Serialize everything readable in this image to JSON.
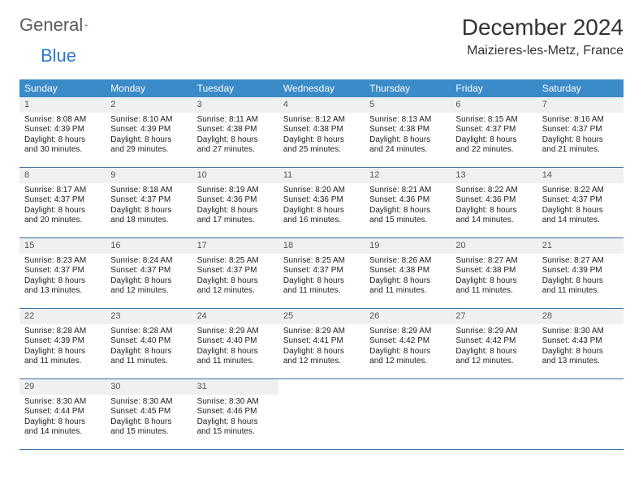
{
  "logo": {
    "general": "General",
    "blue": "Blue"
  },
  "title": "December 2024",
  "location": "Maizieres-les-Metz, France",
  "colors": {
    "header_bg": "#3b8bc9",
    "header_text": "#ffffff",
    "rule": "#3b6fa0",
    "daynum_bg": "#eef0f2",
    "logo_gray": "#5a5a5a",
    "logo_blue": "#2b78c4"
  },
  "weekdays": [
    "Sunday",
    "Monday",
    "Tuesday",
    "Wednesday",
    "Thursday",
    "Friday",
    "Saturday"
  ],
  "days": [
    {
      "n": 1,
      "sunrise": "8:08 AM",
      "sunset": "4:39 PM",
      "day_h": 8,
      "day_m": 30
    },
    {
      "n": 2,
      "sunrise": "8:10 AM",
      "sunset": "4:39 PM",
      "day_h": 8,
      "day_m": 29
    },
    {
      "n": 3,
      "sunrise": "8:11 AM",
      "sunset": "4:38 PM",
      "day_h": 8,
      "day_m": 27
    },
    {
      "n": 4,
      "sunrise": "8:12 AM",
      "sunset": "4:38 PM",
      "day_h": 8,
      "day_m": 25
    },
    {
      "n": 5,
      "sunrise": "8:13 AM",
      "sunset": "4:38 PM",
      "day_h": 8,
      "day_m": 24
    },
    {
      "n": 6,
      "sunrise": "8:15 AM",
      "sunset": "4:37 PM",
      "day_h": 8,
      "day_m": 22
    },
    {
      "n": 7,
      "sunrise": "8:16 AM",
      "sunset": "4:37 PM",
      "day_h": 8,
      "day_m": 21
    },
    {
      "n": 8,
      "sunrise": "8:17 AM",
      "sunset": "4:37 PM",
      "day_h": 8,
      "day_m": 20
    },
    {
      "n": 9,
      "sunrise": "8:18 AM",
      "sunset": "4:37 PM",
      "day_h": 8,
      "day_m": 18
    },
    {
      "n": 10,
      "sunrise": "8:19 AM",
      "sunset": "4:36 PM",
      "day_h": 8,
      "day_m": 17
    },
    {
      "n": 11,
      "sunrise": "8:20 AM",
      "sunset": "4:36 PM",
      "day_h": 8,
      "day_m": 16
    },
    {
      "n": 12,
      "sunrise": "8:21 AM",
      "sunset": "4:36 PM",
      "day_h": 8,
      "day_m": 15
    },
    {
      "n": 13,
      "sunrise": "8:22 AM",
      "sunset": "4:36 PM",
      "day_h": 8,
      "day_m": 14
    },
    {
      "n": 14,
      "sunrise": "8:22 AM",
      "sunset": "4:37 PM",
      "day_h": 8,
      "day_m": 14
    },
    {
      "n": 15,
      "sunrise": "8:23 AM",
      "sunset": "4:37 PM",
      "day_h": 8,
      "day_m": 13
    },
    {
      "n": 16,
      "sunrise": "8:24 AM",
      "sunset": "4:37 PM",
      "day_h": 8,
      "day_m": 12
    },
    {
      "n": 17,
      "sunrise": "8:25 AM",
      "sunset": "4:37 PM",
      "day_h": 8,
      "day_m": 12
    },
    {
      "n": 18,
      "sunrise": "8:25 AM",
      "sunset": "4:37 PM",
      "day_h": 8,
      "day_m": 11
    },
    {
      "n": 19,
      "sunrise": "8:26 AM",
      "sunset": "4:38 PM",
      "day_h": 8,
      "day_m": 11
    },
    {
      "n": 20,
      "sunrise": "8:27 AM",
      "sunset": "4:38 PM",
      "day_h": 8,
      "day_m": 11
    },
    {
      "n": 21,
      "sunrise": "8:27 AM",
      "sunset": "4:39 PM",
      "day_h": 8,
      "day_m": 11
    },
    {
      "n": 22,
      "sunrise": "8:28 AM",
      "sunset": "4:39 PM",
      "day_h": 8,
      "day_m": 11
    },
    {
      "n": 23,
      "sunrise": "8:28 AM",
      "sunset": "4:40 PM",
      "day_h": 8,
      "day_m": 11
    },
    {
      "n": 24,
      "sunrise": "8:29 AM",
      "sunset": "4:40 PM",
      "day_h": 8,
      "day_m": 11
    },
    {
      "n": 25,
      "sunrise": "8:29 AM",
      "sunset": "4:41 PM",
      "day_h": 8,
      "day_m": 12
    },
    {
      "n": 26,
      "sunrise": "8:29 AM",
      "sunset": "4:42 PM",
      "day_h": 8,
      "day_m": 12
    },
    {
      "n": 27,
      "sunrise": "8:29 AM",
      "sunset": "4:42 PM",
      "day_h": 8,
      "day_m": 12
    },
    {
      "n": 28,
      "sunrise": "8:30 AM",
      "sunset": "4:43 PM",
      "day_h": 8,
      "day_m": 13
    },
    {
      "n": 29,
      "sunrise": "8:30 AM",
      "sunset": "4:44 PM",
      "day_h": 8,
      "day_m": 14
    },
    {
      "n": 30,
      "sunrise": "8:30 AM",
      "sunset": "4:45 PM",
      "day_h": 8,
      "day_m": 15
    },
    {
      "n": 31,
      "sunrise": "8:30 AM",
      "sunset": "4:46 PM",
      "day_h": 8,
      "day_m": 15
    }
  ],
  "labels": {
    "sunrise": "Sunrise:",
    "sunset": "Sunset:",
    "daylight_pre": "Daylight:",
    "hours": "hours",
    "and": "and",
    "minutes": "minutes."
  },
  "layout": {
    "first_weekday_index": 0,
    "cols": 7,
    "rows": 5,
    "font_size_cell": 10,
    "font_size_weekday": 12,
    "font_size_title": 28,
    "font_size_location": 16
  }
}
